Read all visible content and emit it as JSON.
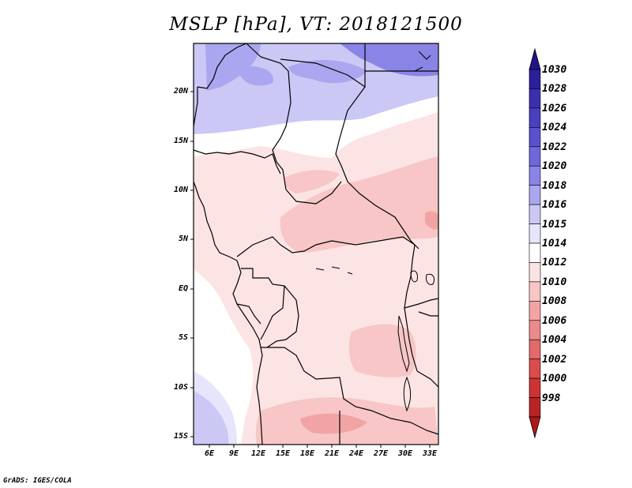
{
  "title": "MSLP [hPa], VT: 2018121500",
  "credit": "GrADS: IGES/COLA",
  "lat_ticks": [
    "20N",
    "15N",
    "10N",
    "5N",
    "EQ",
    "5S",
    "10S",
    "15S"
  ],
  "lon_ticks": [
    "6E",
    "9E",
    "12E",
    "15E",
    "18E",
    "21E",
    "24E",
    "27E",
    "30E",
    "33E"
  ],
  "colorbar": {
    "top_arrow_color": "#1f1488",
    "bottom_arrow_color": "#b01818",
    "segments": [
      {
        "label": "1030",
        "color": "#2c1f9a"
      },
      {
        "label": "1028",
        "color": "#3b2fae"
      },
      {
        "label": "1026",
        "color": "#4a3fbe"
      },
      {
        "label": "1024",
        "color": "#5a52cc"
      },
      {
        "label": "1022",
        "color": "#6f68da"
      },
      {
        "label": "1020",
        "color": "#8a84e6"
      },
      {
        "label": "1018",
        "color": "#aaa6ef"
      },
      {
        "label": "1016",
        "color": "#cbc8f6"
      },
      {
        "label": "1015",
        "color": "#e6e5fb"
      },
      {
        "label": "1014",
        "color": "#ffffff"
      },
      {
        "label": "1012",
        "color": "#fce4e4"
      },
      {
        "label": "1010",
        "color": "#f8c6c6"
      },
      {
        "label": "1008",
        "color": "#f2a4a4"
      },
      {
        "label": "1006",
        "color": "#ea8a8a"
      },
      {
        "label": "1004",
        "color": "#e26a6a"
      },
      {
        "label": "1002",
        "color": "#d94c4c"
      },
      {
        "label": "1000",
        "color": "#cc3434"
      },
      {
        "label": "998",
        "color": "#b82424"
      }
    ]
  }
}
